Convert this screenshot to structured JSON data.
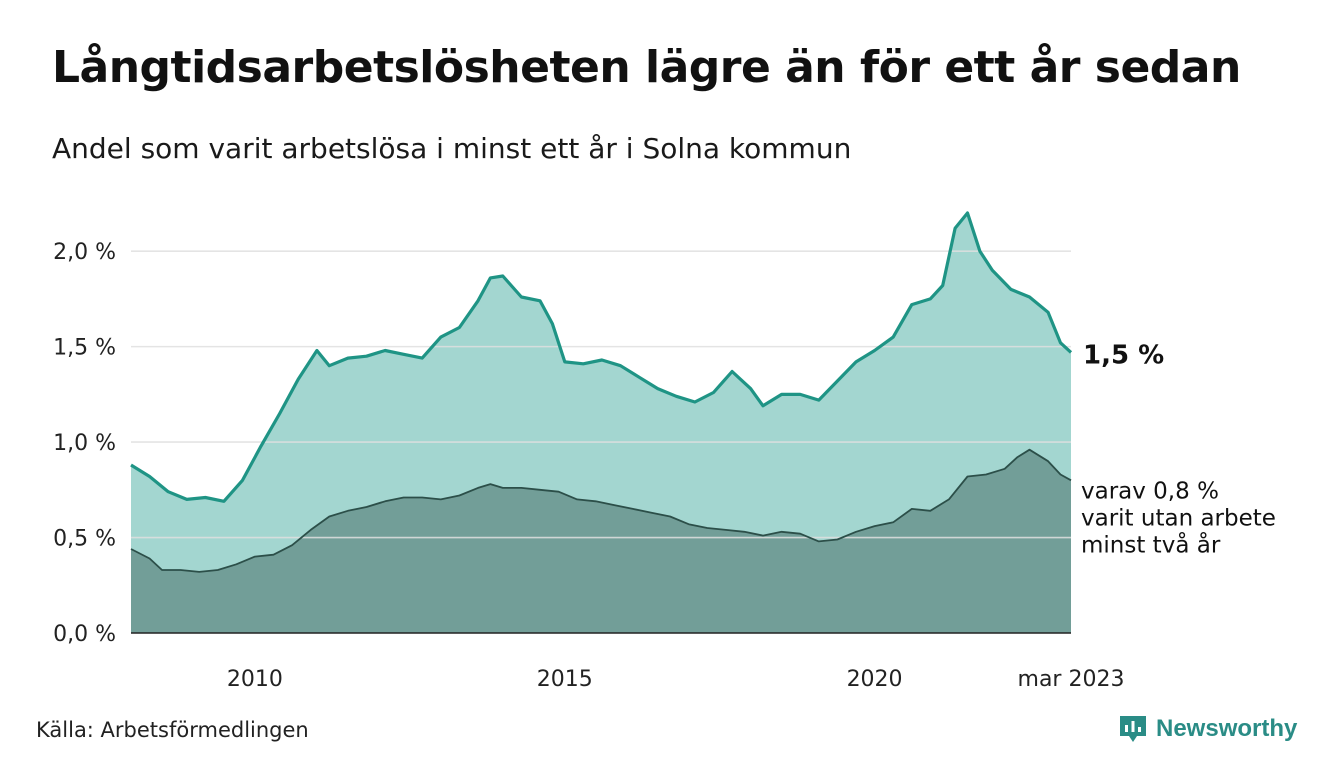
{
  "title": "Långtidsarbetslösheten lägre än för ett år sedan",
  "subtitle": "Andel som varit arbetslösa i minst ett år i Solna kommun",
  "source": "Källa: Arbetsförmedlingen",
  "brand": "Newsworthy",
  "colors": {
    "main_line": "#1f9485",
    "main_fill": "#a3d6d0",
    "sub_line": "#2c4f49",
    "sub_fill": "#729e98",
    "grid": "#e0e0e0",
    "brand": "#2a8c86"
  },
  "chart_data": {
    "type": "area",
    "xlim": [
      2008.0,
      2023.17
    ],
    "ylim": [
      0,
      2.2
    ],
    "yticks": [
      0.0,
      0.5,
      1.0,
      1.5,
      2.0
    ],
    "ytick_labels": [
      "0,0 %",
      "0,5 %",
      "1,0 %",
      "1,5 %",
      "2,0 %"
    ],
    "xticks": [
      2010,
      2015,
      2020,
      2023.17
    ],
    "xtick_labels": [
      "2010",
      "2015",
      "2020",
      "mar 2023"
    ],
    "grid": true,
    "series": [
      {
        "label": "1,5 %",
        "points": [
          [
            2008.0,
            0.88
          ],
          [
            2008.3,
            0.82
          ],
          [
            2008.6,
            0.74
          ],
          [
            2008.9,
            0.7
          ],
          [
            2009.2,
            0.71
          ],
          [
            2009.5,
            0.69
          ],
          [
            2009.8,
            0.8
          ],
          [
            2010.1,
            0.98
          ],
          [
            2010.4,
            1.15
          ],
          [
            2010.7,
            1.33
          ],
          [
            2011.0,
            1.48
          ],
          [
            2011.2,
            1.4
          ],
          [
            2011.5,
            1.44
          ],
          [
            2011.8,
            1.45
          ],
          [
            2012.1,
            1.48
          ],
          [
            2012.4,
            1.46
          ],
          [
            2012.7,
            1.44
          ],
          [
            2013.0,
            1.55
          ],
          [
            2013.3,
            1.6
          ],
          [
            2013.6,
            1.74
          ],
          [
            2013.8,
            1.86
          ],
          [
            2014.0,
            1.87
          ],
          [
            2014.3,
            1.76
          ],
          [
            2014.6,
            1.74
          ],
          [
            2014.8,
            1.62
          ],
          [
            2015.0,
            1.42
          ],
          [
            2015.3,
            1.41
          ],
          [
            2015.6,
            1.43
          ],
          [
            2015.9,
            1.4
          ],
          [
            2016.2,
            1.34
          ],
          [
            2016.5,
            1.28
          ],
          [
            2016.8,
            1.24
          ],
          [
            2017.1,
            1.21
          ],
          [
            2017.4,
            1.26
          ],
          [
            2017.7,
            1.37
          ],
          [
            2018.0,
            1.28
          ],
          [
            2018.2,
            1.19
          ],
          [
            2018.5,
            1.25
          ],
          [
            2018.8,
            1.25
          ],
          [
            2019.1,
            1.22
          ],
          [
            2019.4,
            1.32
          ],
          [
            2019.7,
            1.42
          ],
          [
            2020.0,
            1.48
          ],
          [
            2020.3,
            1.55
          ],
          [
            2020.6,
            1.72
          ],
          [
            2020.9,
            1.75
          ],
          [
            2021.1,
            1.82
          ],
          [
            2021.3,
            2.12
          ],
          [
            2021.5,
            2.2
          ],
          [
            2021.7,
            2.0
          ],
          [
            2021.9,
            1.9
          ],
          [
            2022.2,
            1.8
          ],
          [
            2022.5,
            1.76
          ],
          [
            2022.8,
            1.68
          ],
          [
            2023.0,
            1.52
          ],
          [
            2023.17,
            1.47
          ]
        ]
      },
      {
        "label": "varav 0,8 % varit utan arbete minst två år",
        "label_lines": [
          "varav 0,8 %",
          "varit utan arbete",
          "minst två år"
        ],
        "points": [
          [
            2008.0,
            0.44
          ],
          [
            2008.3,
            0.39
          ],
          [
            2008.5,
            0.33
          ],
          [
            2008.8,
            0.33
          ],
          [
            2009.1,
            0.32
          ],
          [
            2009.4,
            0.33
          ],
          [
            2009.7,
            0.36
          ],
          [
            2010.0,
            0.4
          ],
          [
            2010.3,
            0.41
          ],
          [
            2010.6,
            0.46
          ],
          [
            2010.9,
            0.54
          ],
          [
            2011.2,
            0.61
          ],
          [
            2011.5,
            0.64
          ],
          [
            2011.8,
            0.66
          ],
          [
            2012.1,
            0.69
          ],
          [
            2012.4,
            0.71
          ],
          [
            2012.7,
            0.71
          ],
          [
            2013.0,
            0.7
          ],
          [
            2013.3,
            0.72
          ],
          [
            2013.6,
            0.76
          ],
          [
            2013.8,
            0.78
          ],
          [
            2014.0,
            0.76
          ],
          [
            2014.3,
            0.76
          ],
          [
            2014.6,
            0.75
          ],
          [
            2014.9,
            0.74
          ],
          [
            2015.2,
            0.7
          ],
          [
            2015.5,
            0.69
          ],
          [
            2015.8,
            0.67
          ],
          [
            2016.1,
            0.65
          ],
          [
            2016.4,
            0.63
          ],
          [
            2016.7,
            0.61
          ],
          [
            2017.0,
            0.57
          ],
          [
            2017.3,
            0.55
          ],
          [
            2017.6,
            0.54
          ],
          [
            2017.9,
            0.53
          ],
          [
            2018.2,
            0.51
          ],
          [
            2018.5,
            0.53
          ],
          [
            2018.8,
            0.52
          ],
          [
            2019.1,
            0.48
          ],
          [
            2019.4,
            0.49
          ],
          [
            2019.7,
            0.53
          ],
          [
            2020.0,
            0.56
          ],
          [
            2020.3,
            0.58
          ],
          [
            2020.6,
            0.65
          ],
          [
            2020.9,
            0.64
          ],
          [
            2021.2,
            0.7
          ],
          [
            2021.5,
            0.82
          ],
          [
            2021.8,
            0.83
          ],
          [
            2022.1,
            0.86
          ],
          [
            2022.3,
            0.92
          ],
          [
            2022.5,
            0.96
          ],
          [
            2022.8,
            0.9
          ],
          [
            2023.0,
            0.83
          ],
          [
            2023.17,
            0.8
          ]
        ]
      }
    ]
  }
}
